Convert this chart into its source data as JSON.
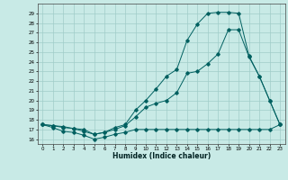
{
  "title": "",
  "xlabel": "Humidex (Indice chaleur)",
  "ylabel": "",
  "bg_color": "#c8eae6",
  "grid_color": "#a0ccc8",
  "line_color": "#006060",
  "xlim": [
    -0.5,
    23.5
  ],
  "ylim": [
    15.5,
    30.0
  ],
  "xticks": [
    0,
    1,
    2,
    3,
    4,
    5,
    6,
    7,
    8,
    9,
    10,
    11,
    12,
    13,
    14,
    15,
    16,
    17,
    18,
    19,
    20,
    21,
    22,
    23
  ],
  "yticks": [
    16,
    17,
    18,
    19,
    20,
    21,
    22,
    23,
    24,
    25,
    26,
    27,
    28,
    29
  ],
  "curve1_x": [
    0,
    1,
    2,
    3,
    4,
    5,
    6,
    7,
    8,
    9,
    10,
    11,
    12,
    13,
    14,
    15,
    16,
    17,
    18,
    19,
    20,
    21,
    22,
    23
  ],
  "curve1_y": [
    17.5,
    17.4,
    17.2,
    17.1,
    16.8,
    16.5,
    16.7,
    17.2,
    17.5,
    19.0,
    20.0,
    21.2,
    22.5,
    23.2,
    26.2,
    27.9,
    29.0,
    29.1,
    29.1,
    29.0,
    24.6,
    22.5,
    20.0,
    17.5
  ],
  "curve2_x": [
    0,
    1,
    2,
    3,
    4,
    5,
    6,
    7,
    8,
    9,
    10,
    11,
    12,
    13,
    14,
    15,
    16,
    17,
    18,
    19,
    20,
    21,
    22,
    23
  ],
  "curve2_y": [
    17.5,
    17.4,
    17.3,
    17.1,
    17.0,
    16.5,
    16.7,
    17.0,
    17.4,
    18.3,
    19.3,
    19.7,
    20.0,
    20.8,
    22.8,
    23.0,
    23.8,
    24.8,
    27.3,
    27.3,
    24.5,
    22.5,
    20.0,
    17.5
  ],
  "curve3_x": [
    0,
    1,
    2,
    3,
    4,
    5,
    6,
    7,
    8,
    9,
    10,
    11,
    12,
    13,
    14,
    15,
    16,
    17,
    18,
    19,
    20,
    21,
    22,
    23
  ],
  "curve3_y": [
    17.5,
    17.2,
    16.8,
    16.7,
    16.4,
    16.0,
    16.2,
    16.5,
    16.7,
    17.0,
    17.0,
    17.0,
    17.0,
    17.0,
    17.0,
    17.0,
    17.0,
    17.0,
    17.0,
    17.0,
    17.0,
    17.0,
    17.0,
    17.5
  ]
}
